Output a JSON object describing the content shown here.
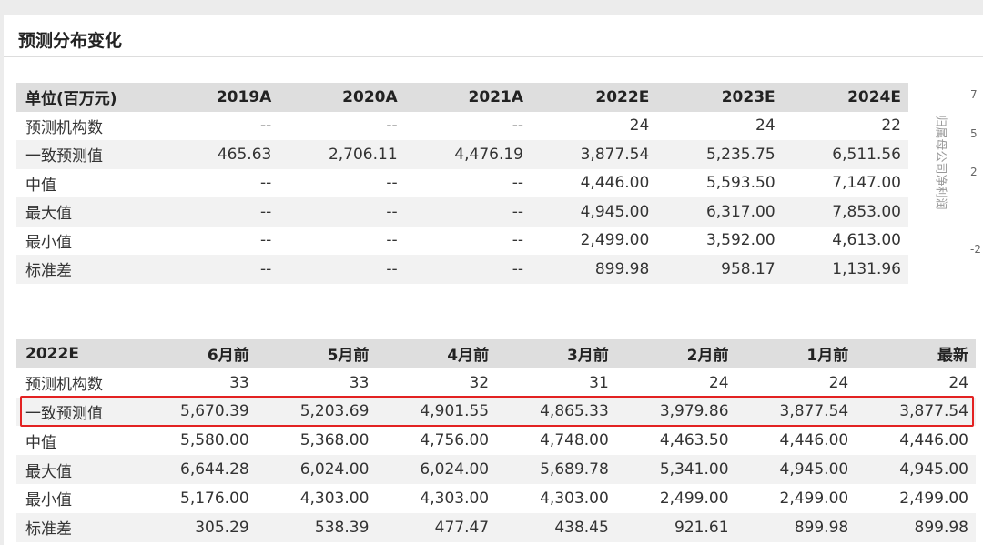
{
  "title": "预测分布变化",
  "table1": {
    "header": [
      "单位(百万元)",
      "2019A",
      "2020A",
      "2021A",
      "2022E",
      "2023E",
      "2024E"
    ],
    "rows": [
      [
        "预测机构数",
        "--",
        "--",
        "--",
        "24",
        "24",
        "22"
      ],
      [
        "一致预测值",
        "465.63",
        "2,706.11",
        "4,476.19",
        "3,877.54",
        "5,235.75",
        "6,511.56"
      ],
      [
        "中值",
        "--",
        "--",
        "--",
        "4,446.00",
        "5,593.50",
        "7,147.00"
      ],
      [
        "最大值",
        "--",
        "--",
        "--",
        "4,945.00",
        "6,317.00",
        "7,853.00"
      ],
      [
        "最小值",
        "--",
        "--",
        "--",
        "2,499.00",
        "3,592.00",
        "4,613.00"
      ],
      [
        "标准差",
        "--",
        "--",
        "--",
        "899.98",
        "958.17",
        "1,131.96"
      ]
    ]
  },
  "table2": {
    "header": [
      "2022E",
      "6月前",
      "5月前",
      "4月前",
      "3月前",
      "2月前",
      "1月前",
      "最新"
    ],
    "rows": [
      [
        "预测机构数",
        "33",
        "33",
        "32",
        "31",
        "24",
        "24",
        "24"
      ],
      [
        "一致预测值",
        "5,670.39",
        "5,203.69",
        "4,901.55",
        "4,865.33",
        "3,979.86",
        "3,877.54",
        "3,877.54"
      ],
      [
        "中值",
        "5,580.00",
        "5,368.00",
        "4,756.00",
        "4,748.00",
        "4,463.50",
        "4,446.00",
        "4,446.00"
      ],
      [
        "最大值",
        "6,644.28",
        "6,024.00",
        "6,024.00",
        "5,689.78",
        "5,341.00",
        "4,945.00",
        "4,945.00"
      ],
      [
        "最小值",
        "5,176.00",
        "4,303.00",
        "4,303.00",
        "4,303.00",
        "2,499.00",
        "2,499.00",
        "2,499.00"
      ],
      [
        "标准差",
        "305.29",
        "538.39",
        "477.47",
        "438.45",
        "921.61",
        "899.98",
        "899.98"
      ]
    ]
  },
  "side_chart": {
    "axis_label": "归属母公司净利润",
    "ticks": [
      "7",
      "5",
      "2",
      "-2"
    ]
  }
}
